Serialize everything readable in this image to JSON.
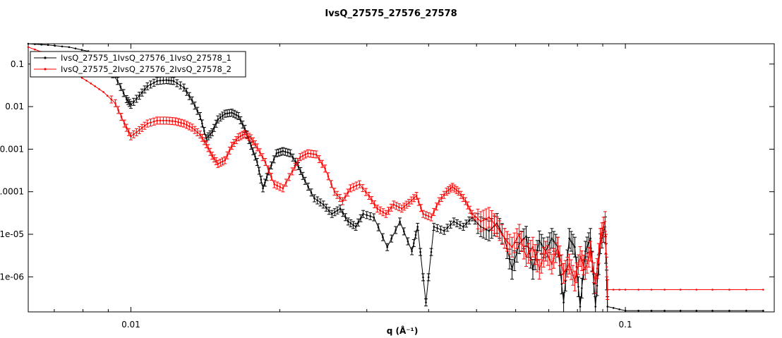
{
  "chart_data": {
    "type": "line",
    "title": "IvsQ_27575_27576_27578",
    "xlabel": "q (Å⁻¹)",
    "ylabel": "",
    "xscale": "log",
    "yscale": "log",
    "xlim": [
      0.0062,
      0.2
    ],
    "ylim": [
      1.5e-07,
      0.3
    ],
    "xticks": [
      {
        "value": 0.01,
        "label": "0.01"
      },
      {
        "value": 0.1,
        "label": "0.1"
      }
    ],
    "yticks": [
      {
        "value": 0.1,
        "label": "0.1"
      },
      {
        "value": 0.01,
        "label": "0.01"
      },
      {
        "value": 0.001,
        "label": "0.001"
      },
      {
        "value": 0.0001,
        "label": "0.0001"
      },
      {
        "value": 1e-05,
        "label": "1e-05"
      },
      {
        "value": 1e-06,
        "label": "1e-06"
      }
    ],
    "legend_position": "top-left",
    "grid": false,
    "series": [
      {
        "name": "IvsQ_27575_1IvsQ_27576_1IvsQ_27578_1",
        "color": "#000000",
        "points": [
          [
            0.0062,
            0.3
          ],
          [
            0.0068,
            0.28
          ],
          [
            0.0075,
            0.25
          ],
          [
            0.0082,
            0.2
          ],
          [
            0.0088,
            0.12
          ],
          [
            0.0094,
            0.04
          ],
          [
            0.0098,
            0.015
          ],
          [
            0.01,
            0.011
          ],
          [
            0.0104,
            0.018
          ],
          [
            0.0108,
            0.03
          ],
          [
            0.0113,
            0.04
          ],
          [
            0.0118,
            0.042
          ],
          [
            0.0122,
            0.04
          ],
          [
            0.0128,
            0.028
          ],
          [
            0.0133,
            0.014
          ],
          [
            0.0138,
            0.006
          ],
          [
            0.0142,
            0.0018
          ],
          [
            0.0146,
            0.0025
          ],
          [
            0.015,
            0.005
          ],
          [
            0.0155,
            0.0068
          ],
          [
            0.016,
            0.0072
          ],
          [
            0.0165,
            0.006
          ],
          [
            0.017,
            0.003
          ],
          [
            0.0175,
            0.0012
          ],
          [
            0.018,
            0.0005
          ],
          [
            0.0185,
            0.00012
          ],
          [
            0.019,
            0.0003
          ],
          [
            0.0197,
            0.0008
          ],
          [
            0.0203,
            0.0009
          ],
          [
            0.021,
            0.0008
          ],
          [
            0.0218,
            0.0004
          ],
          [
            0.0225,
            0.00018
          ],
          [
            0.0235,
            7e-05
          ],
          [
            0.0245,
            5e-05
          ],
          [
            0.0255,
            3e-05
          ],
          [
            0.0265,
            4e-05
          ],
          [
            0.0275,
            2e-05
          ],
          [
            0.0285,
            1.5e-05
          ],
          [
            0.0295,
            3e-05
          ],
          [
            0.031,
            2.5e-05
          ],
          [
            0.033,
            5e-06
          ],
          [
            0.035,
            2e-05
          ],
          [
            0.037,
            4e-06
          ],
          [
            0.038,
            1.5e-05
          ],
          [
            0.0395,
            2.5e-07
          ],
          [
            0.041,
            1.5e-05
          ],
          [
            0.043,
            1.2e-05
          ],
          [
            0.045,
            2e-05
          ],
          [
            0.047,
            1.5e-05
          ],
          [
            0.049,
            2.5e-05
          ],
          [
            0.051,
            1.5e-05
          ],
          [
            0.053,
            1.2e-05
          ],
          [
            0.055,
            1.8e-05
          ],
          [
            0.057,
            8e-06
          ],
          [
            0.059,
            1.5e-06
          ],
          [
            0.061,
            6e-06
          ],
          [
            0.063,
            9e-06
          ],
          [
            0.065,
            1.5e-06
          ],
          [
            0.067,
            7e-06
          ],
          [
            0.069,
            4e-06
          ],
          [
            0.071,
            8e-06
          ],
          [
            0.073,
            5e-06
          ],
          [
            0.075,
            2.5e-07
          ],
          [
            0.077,
            8e-06
          ],
          [
            0.079,
            5e-06
          ],
          [
            0.081,
            2e-07
          ],
          [
            0.083,
            4e-06
          ],
          [
            0.085,
            8e-06
          ],
          [
            0.087,
            2e-07
          ],
          [
            0.089,
            6e-06
          ],
          [
            0.091,
            1.5e-05
          ],
          [
            0.092,
            2e-07
          ],
          [
            0.1,
            1.6e-07
          ],
          [
            0.12,
            1.6e-07
          ],
          [
            0.15,
            1.6e-07
          ],
          [
            0.19,
            1.6e-07
          ]
        ]
      },
      {
        "name": "IvsQ_27575_2IvsQ_27576_2IvsQ_27578_2",
        "color": "#ff0000",
        "points": [
          [
            0.0062,
            0.25
          ],
          [
            0.0068,
            0.17
          ],
          [
            0.0073,
            0.1
          ],
          [
            0.0078,
            0.055
          ],
          [
            0.0083,
            0.035
          ],
          [
            0.0088,
            0.022
          ],
          [
            0.0093,
            0.012
          ],
          [
            0.0097,
            0.004
          ],
          [
            0.01,
            0.002
          ],
          [
            0.0104,
            0.0028
          ],
          [
            0.0108,
            0.004
          ],
          [
            0.0113,
            0.0047
          ],
          [
            0.0118,
            0.0047
          ],
          [
            0.0123,
            0.0045
          ],
          [
            0.0128,
            0.004
          ],
          [
            0.0133,
            0.0032
          ],
          [
            0.0138,
            0.0022
          ],
          [
            0.0142,
            0.0013
          ],
          [
            0.0146,
            0.0007
          ],
          [
            0.015,
            0.00045
          ],
          [
            0.0155,
            0.00055
          ],
          [
            0.016,
            0.0012
          ],
          [
            0.0165,
            0.0019
          ],
          [
            0.017,
            0.0023
          ],
          [
            0.0175,
            0.0018
          ],
          [
            0.018,
            0.0011
          ],
          [
            0.0187,
            0.0005
          ],
          [
            0.0195,
            0.00015
          ],
          [
            0.0203,
            0.00012
          ],
          [
            0.0212,
            0.0003
          ],
          [
            0.022,
            0.00065
          ],
          [
            0.0228,
            0.0008
          ],
          [
            0.0237,
            0.00075
          ],
          [
            0.0247,
            0.00035
          ],
          [
            0.0258,
            0.0001
          ],
          [
            0.0268,
            6e-05
          ],
          [
            0.0278,
            0.00012
          ],
          [
            0.029,
            0.00015
          ],
          [
            0.0303,
            8e-05
          ],
          [
            0.0315,
            4e-05
          ],
          [
            0.0328,
            3e-05
          ],
          [
            0.034,
            5e-05
          ],
          [
            0.0353,
            4e-05
          ],
          [
            0.0365,
            5.5e-05
          ],
          [
            0.0378,
            8e-05
          ],
          [
            0.039,
            3e-05
          ],
          [
            0.0405,
            2.5e-05
          ],
          [
            0.042,
            6e-05
          ],
          [
            0.0435,
            0.0001
          ],
          [
            0.0447,
            0.00013
          ],
          [
            0.046,
            0.0001
          ],
          [
            0.0475,
            6e-05
          ],
          [
            0.049,
            3e-05
          ],
          [
            0.051,
            2e-05
          ],
          [
            0.053,
            2.5e-05
          ],
          [
            0.055,
            1.5e-05
          ],
          [
            0.057,
            8e-06
          ],
          [
            0.059,
            5e-06
          ],
          [
            0.061,
            1e-05
          ],
          [
            0.063,
            3e-06
          ],
          [
            0.065,
            5e-06
          ],
          [
            0.067,
            1.5e-06
          ],
          [
            0.069,
            4e-06
          ],
          [
            0.071,
            2e-06
          ],
          [
            0.073,
            5e-06
          ],
          [
            0.075,
            1.2e-06
          ],
          [
            0.077,
            2e-06
          ],
          [
            0.079,
            8e-07
          ],
          [
            0.081,
            3e-06
          ],
          [
            0.083,
            1.5e-06
          ],
          [
            0.085,
            4e-06
          ],
          [
            0.087,
            7e-07
          ],
          [
            0.089,
            8e-06
          ],
          [
            0.091,
            2e-05
          ],
          [
            0.092,
            5e-07
          ],
          [
            0.1,
            5e-07
          ],
          [
            0.12,
            5e-07
          ],
          [
            0.15,
            5e-07
          ],
          [
            0.19,
            5e-07
          ]
        ]
      }
    ]
  }
}
